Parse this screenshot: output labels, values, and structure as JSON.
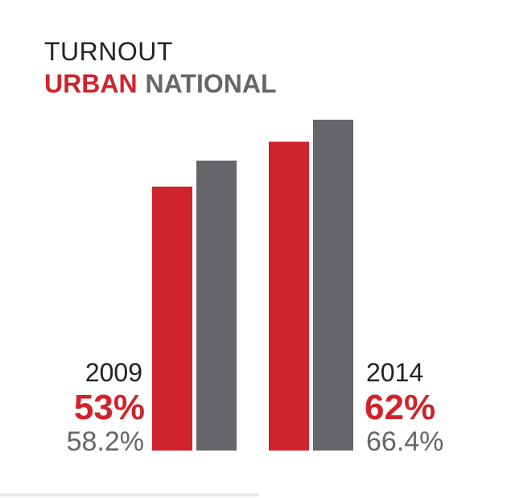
{
  "chart_data": {
    "type": "bar",
    "title": "TURNOUT",
    "legend": [
      {
        "name": "URBAN",
        "color": "#d0232b"
      },
      {
        "name": "NATIONAL",
        "color": "#66666a"
      }
    ],
    "categories": [
      "2009",
      "2014"
    ],
    "series": [
      {
        "name": "URBAN",
        "values": [
          53,
          62
        ],
        "labels": [
          "53%",
          "62%"
        ],
        "color": "#d0232b"
      },
      {
        "name": "NATIONAL",
        "values": [
          58.2,
          66.4
        ],
        "labels": [
          "58.2%",
          "66.4%"
        ],
        "color": "#66666a"
      }
    ],
    "xlabel": "",
    "ylabel": "",
    "grid": false
  }
}
